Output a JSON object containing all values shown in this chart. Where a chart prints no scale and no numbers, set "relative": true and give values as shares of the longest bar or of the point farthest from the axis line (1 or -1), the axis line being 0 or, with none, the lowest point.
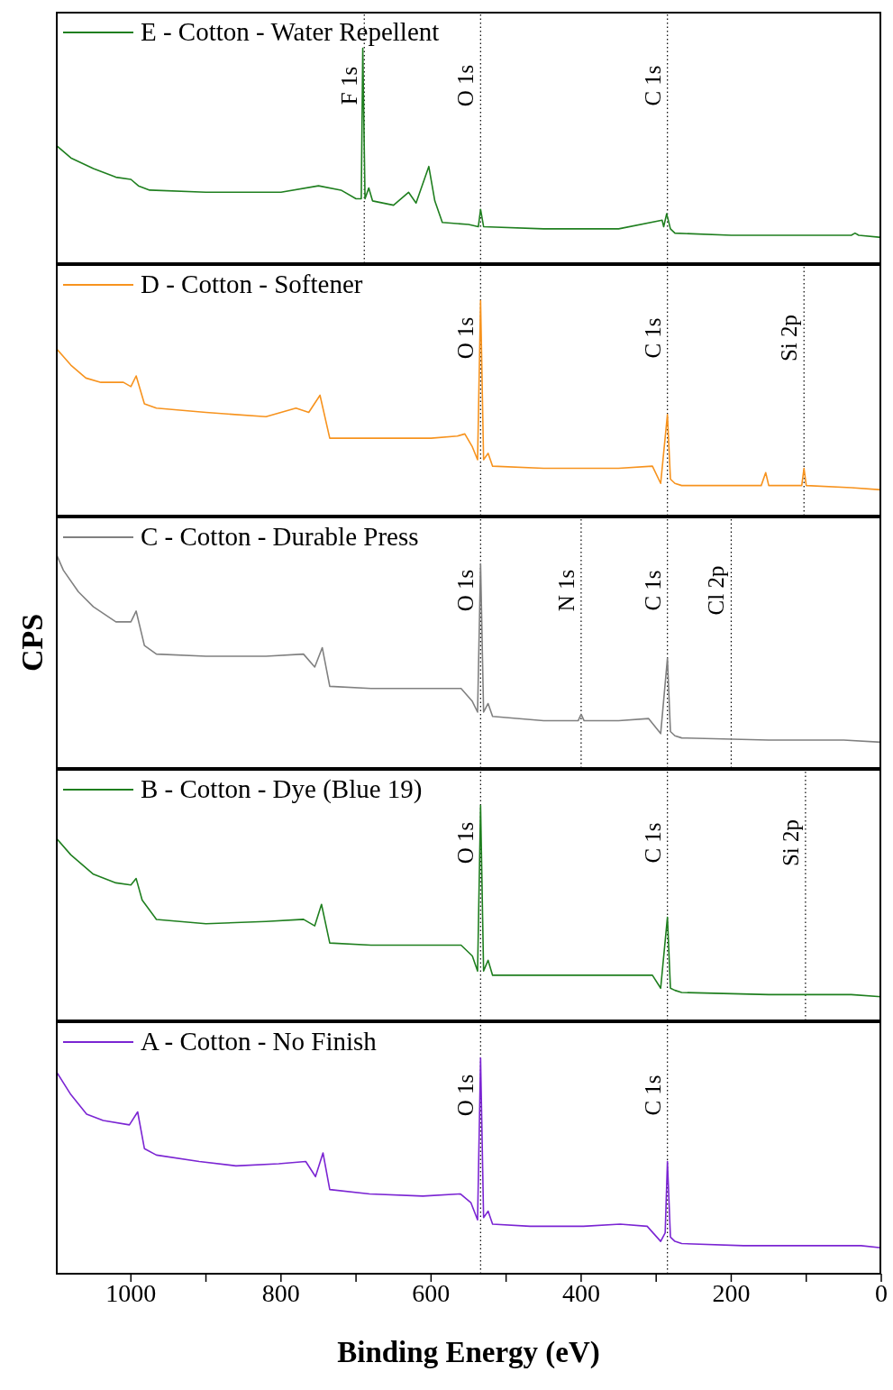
{
  "chart_data": [
    {
      "type": "line",
      "relative": true,
      "xlim": [
        1100,
        0
      ],
      "tick_labels": false,
      "legend": "top left",
      "x": [
        1100,
        1080,
        1050,
        1020,
        1000,
        990,
        975,
        900,
        800,
        750,
        720,
        700,
        693,
        691,
        688,
        683,
        678,
        650,
        630,
        620,
        603,
        595,
        585,
        550,
        537,
        534,
        530,
        450,
        350,
        292,
        290,
        286,
        281,
        275,
        200,
        40,
        35,
        30,
        0
      ],
      "series": [
        {
          "name": "E - Cotton - Water Repellent",
          "color": "#1f7f1f",
          "values": [
            0.55,
            0.49,
            0.44,
            0.4,
            0.39,
            0.36,
            0.34,
            0.33,
            0.33,
            0.36,
            0.34,
            0.3,
            0.3,
            1,
            0.3,
            0.35,
            0.29,
            0.27,
            0.33,
            0.28,
            0.45,
            0.29,
            0.19,
            0.18,
            0.17,
            0.25,
            0.17,
            0.16,
            0.16,
            0.2,
            0.17,
            0.23,
            0.16,
            0.14,
            0.13,
            0.13,
            0.14,
            0.13,
            0.12
          ]
        }
      ],
      "ref_lines": [
        {
          "axis": "x",
          "value": 689,
          "label": "F 1s",
          "line_style": "dotted"
        },
        {
          "axis": "x",
          "value": 534,
          "label": "O 1s",
          "line_style": "dotted"
        },
        {
          "axis": "x",
          "value": 285,
          "label": "C 1s",
          "line_style": "dotted"
        }
      ]
    },
    {
      "type": "line",
      "relative": true,
      "xlim": [
        1100,
        0
      ],
      "tick_labels": false,
      "legend": "top left",
      "x": [
        1100,
        1080,
        1060,
        1040,
        1010,
        1000,
        993,
        982,
        966,
        900,
        820,
        780,
        763,
        748,
        735,
        680,
        600,
        565,
        555,
        545,
        538,
        534,
        530,
        524,
        518,
        450,
        350,
        305,
        294,
        285,
        281,
        275,
        266,
        160,
        154,
        150,
        106,
        103,
        100,
        40,
        0
      ],
      "series": [
        {
          "name": "D - Cotton - Softener",
          "color": "#f7931e",
          "values": [
            0.78,
            0.7,
            0.64,
            0.62,
            0.62,
            0.6,
            0.65,
            0.52,
            0.5,
            0.48,
            0.46,
            0.5,
            0.48,
            0.56,
            0.36,
            0.36,
            0.36,
            0.37,
            0.38,
            0.32,
            0.26,
            1,
            0.26,
            0.29,
            0.23,
            0.22,
            0.22,
            0.23,
            0.15,
            0.47,
            0.17,
            0.15,
            0.14,
            0.14,
            0.2,
            0.14,
            0.14,
            0.22,
            0.14,
            0.13,
            0.12
          ]
        }
      ],
      "ref_lines": [
        {
          "axis": "x",
          "value": 534,
          "label": "O 1s",
          "line_style": "dotted"
        },
        {
          "axis": "x",
          "value": 285,
          "label": "C 1s",
          "line_style": "dotted"
        },
        {
          "axis": "x",
          "value": 103,
          "label": "Si 2p",
          "line_style": "dotted"
        }
      ]
    },
    {
      "type": "line",
      "relative": true,
      "xlim": [
        1100,
        0
      ],
      "tick_labels": false,
      "legend": "top left",
      "ylabel": "CPS",
      "x": [
        1100,
        1090,
        1070,
        1050,
        1020,
        1000,
        993,
        982,
        966,
        900,
        820,
        770,
        755,
        745,
        735,
        680,
        600,
        560,
        545,
        538,
        534,
        530,
        524,
        518,
        450,
        404,
        400,
        396,
        350,
        310,
        294,
        285,
        281,
        275,
        266,
        150,
        50,
        0
      ],
      "series": [
        {
          "name": "C - Cotton - Durable Press",
          "color": "#808080",
          "values": [
            1,
            0.92,
            0.82,
            0.75,
            0.68,
            0.68,
            0.73,
            0.57,
            0.53,
            0.52,
            0.52,
            0.53,
            0.47,
            0.56,
            0.38,
            0.37,
            0.37,
            0.37,
            0.31,
            0.26,
            0.95,
            0.26,
            0.3,
            0.24,
            0.22,
            0.22,
            0.25,
            0.22,
            0.22,
            0.23,
            0.16,
            0.51,
            0.17,
            0.15,
            0.14,
            0.13,
            0.13,
            0.12
          ]
        }
      ],
      "ref_lines": [
        {
          "axis": "x",
          "value": 534,
          "label": "O 1s",
          "line_style": "dotted"
        },
        {
          "axis": "x",
          "value": 400,
          "label": "N 1s",
          "line_style": "dotted"
        },
        {
          "axis": "x",
          "value": 285,
          "label": "C 1s",
          "line_style": "dotted"
        },
        {
          "axis": "x",
          "value": 200,
          "label": "Cl 2p",
          "line_style": "dotted"
        }
      ]
    },
    {
      "type": "line",
      "relative": true,
      "xlim": [
        1100,
        0
      ],
      "tick_labels": false,
      "legend": "top left",
      "x": [
        1100,
        1080,
        1050,
        1020,
        1000,
        993,
        985,
        966,
        900,
        820,
        770,
        755,
        746,
        735,
        680,
        600,
        560,
        545,
        538,
        534,
        530,
        524,
        518,
        450,
        350,
        305,
        294,
        285,
        281,
        275,
        266,
        150,
        101,
        40,
        0
      ],
      "series": [
        {
          "name": "B - Cotton - Dye (Blue 19)",
          "color": "#1f7f1f",
          "values": [
            0.85,
            0.77,
            0.68,
            0.64,
            0.63,
            0.66,
            0.56,
            0.47,
            0.45,
            0.46,
            0.47,
            0.44,
            0.54,
            0.36,
            0.35,
            0.35,
            0.35,
            0.3,
            0.23,
            1,
            0.23,
            0.28,
            0.21,
            0.21,
            0.21,
            0.21,
            0.15,
            0.48,
            0.15,
            0.14,
            0.13,
            0.12,
            0.12,
            0.12,
            0.11
          ]
        }
      ],
      "ref_lines": [
        {
          "axis": "x",
          "value": 534,
          "label": "O 1s",
          "line_style": "dotted"
        },
        {
          "axis": "x",
          "value": 285,
          "label": "C 1s",
          "line_style": "dotted"
        },
        {
          "axis": "x",
          "value": 101,
          "label": "Si 2p",
          "line_style": "dotted"
        }
      ]
    },
    {
      "type": "line",
      "relative": true,
      "xlim": [
        1100,
        0
      ],
      "legend": "top left",
      "xlabel": "Binding Energy (eV)",
      "xticks": [
        1000,
        {
          "value": 900,
          "label": null
        },
        800,
        {
          "value": 700,
          "label": null
        },
        600,
        {
          "value": 500,
          "label": null
        },
        400,
        {
          "value": 300,
          "label": null
        },
        200,
        {
          "value": 100,
          "label": null
        },
        0
      ],
      "x": [
        1100,
        1080,
        1059,
        1037,
        1002,
        991,
        982,
        966,
        909,
        860,
        803,
        767,
        754,
        744,
        735,
        682,
        611,
        561,
        547,
        538,
        534,
        530,
        524,
        518,
        468,
        397,
        348,
        312,
        294,
        288,
        285,
        281,
        275,
        266,
        184,
        27,
        0
      ],
      "series": [
        {
          "name": "A - Cotton - No Finish",
          "color": "#7b25d3",
          "values": [
            0.94,
            0.83,
            0.74,
            0.71,
            0.69,
            0.75,
            0.58,
            0.55,
            0.52,
            0.5,
            0.51,
            0.52,
            0.45,
            0.56,
            0.39,
            0.37,
            0.36,
            0.37,
            0.33,
            0.25,
            1,
            0.26,
            0.29,
            0.23,
            0.22,
            0.22,
            0.23,
            0.22,
            0.15,
            0.19,
            0.52,
            0.17,
            0.15,
            0.14,
            0.13,
            0.13,
            0.12
          ]
        }
      ],
      "ref_lines": [
        {
          "axis": "x",
          "value": 534,
          "label": "O 1s",
          "line_style": "dotted"
        },
        {
          "axis": "x",
          "value": 285,
          "label": "C 1s",
          "line_style": "dotted"
        }
      ]
    }
  ]
}
